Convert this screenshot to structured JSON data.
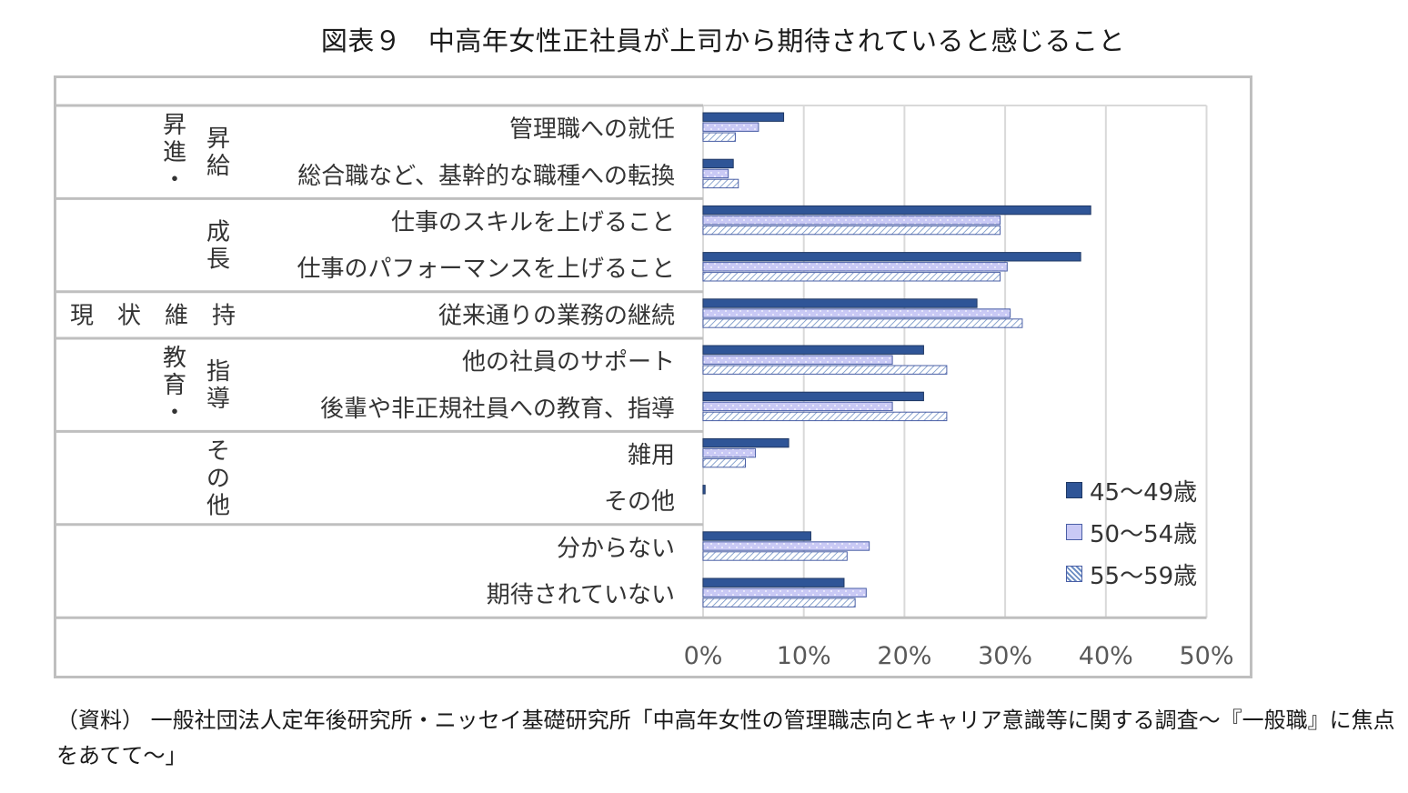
{
  "title": "図表９　中高年女性正社員が上司から期待されていると感じること",
  "source_note": "（資料） 一般社団法人定年後研究所・ニッセイ基礎研究所「中高年女性の管理職志向とキャリア意識等に関する調査～『一般職』に焦点をあてて～」",
  "colors": {
    "series1": "#2f5597",
    "series2": "#c9c9f5",
    "series3": "#ffffff",
    "grid": "#d9d9d9",
    "frame": "#bfbfbf"
  },
  "chart_data": {
    "type": "bar",
    "orientation": "horizontal",
    "title": "",
    "xlabel": "",
    "ylabel": "",
    "xlim": [
      0,
      50
    ],
    "ticks": [
      "0%",
      "10%",
      "20%",
      "30%",
      "40%",
      "50%"
    ],
    "grid": true,
    "legend_position": "bottom-right",
    "groups": [
      {
        "label": "昇進・昇給",
        "categories": [
          "管理職への就任",
          "総合職など、基幹的な職種への転換"
        ]
      },
      {
        "label": "成長",
        "categories": [
          "仕事のスキルを上げること",
          "仕事のパフォーマンスを上げること"
        ]
      },
      {
        "label": "現状維持",
        "categories": [
          "従来通りの業務の継続"
        ]
      },
      {
        "label": "教育・指導",
        "categories": [
          "他の社員のサポート",
          "後輩や非正規社員への教育、指導"
        ]
      },
      {
        "label": "その他",
        "categories": [
          "雑用",
          "その他"
        ]
      },
      {
        "label": "",
        "categories": [
          "分からない",
          "期待されていない"
        ]
      }
    ],
    "categories": [
      "管理職への就任",
      "総合職など、基幹的な職種への転換",
      "仕事のスキルを上げること",
      "仕事のパフォーマンスを上げること",
      "従来通りの業務の継続",
      "他の社員のサポート",
      "後輩や非正規社員への教育、指導",
      "雑用",
      "その他",
      "分からない",
      "期待されていない"
    ],
    "series": [
      {
        "name": "45～49歳",
        "values": [
          8.0,
          3.0,
          38.5,
          37.5,
          27.2,
          21.9,
          21.9,
          8.5,
          0.2,
          10.7,
          14.0
        ]
      },
      {
        "name": "50～54歳",
        "values": [
          5.5,
          2.5,
          29.5,
          30.2,
          30.5,
          18.8,
          18.8,
          5.2,
          0.0,
          16.5,
          16.2
        ]
      },
      {
        "name": "55～59歳",
        "values": [
          3.2,
          3.5,
          29.5,
          29.5,
          31.7,
          24.2,
          24.2,
          4.2,
          0.0,
          14.3,
          15.1
        ]
      }
    ]
  }
}
